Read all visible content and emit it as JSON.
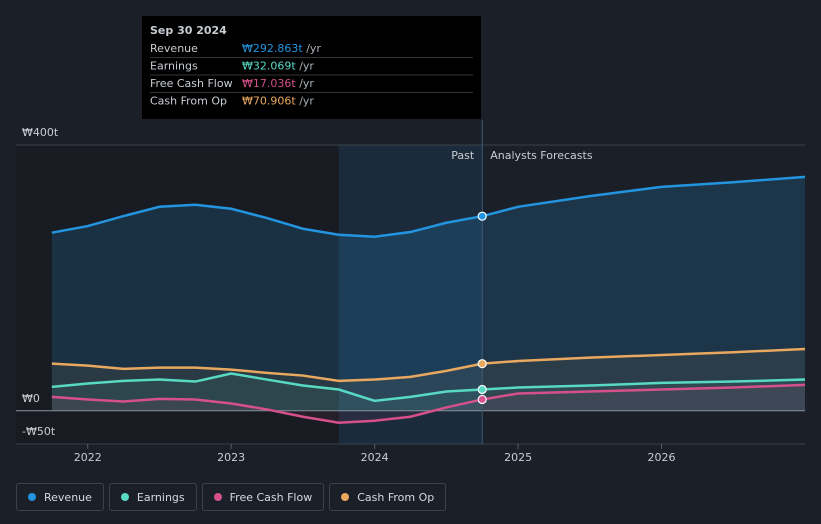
{
  "chart_data": {
    "type": "line",
    "x": [
      2021.75,
      2022,
      2022.25,
      2022.5,
      2022.75,
      2023,
      2023.25,
      2023.5,
      2023.75,
      2024,
      2024.25,
      2024.5,
      2024.75,
      2025,
      2025.5,
      2026,
      2026.5,
      2027
    ],
    "xlim": [
      2021.5,
      2027
    ],
    "xticks": [
      2022,
      2023,
      2024,
      2025,
      2026
    ],
    "ylim": [
      -50,
      400
    ],
    "yticks": [
      {
        "value": 400,
        "label": "₩400t"
      },
      {
        "value": 0,
        "label": "₩0"
      },
      {
        "value": -50,
        "label": "-₩50t"
      }
    ],
    "divider": 2024.75,
    "highlight_start": 2023.75,
    "annotations": {
      "past": "Past",
      "forecast": "Analysts Forecasts"
    },
    "tooltip": {
      "title": "Sep 30 2024",
      "suffix": "/yr",
      "index": 12
    },
    "series": [
      {
        "name": "Revenue",
        "color": "#2394df",
        "values": [
          268,
          278,
          293,
          307,
          310,
          304,
          290,
          274,
          265,
          262,
          269,
          283,
          292.863,
          307,
          323,
          337,
          344,
          352
        ],
        "value_labels": [
          null,
          null,
          null,
          null,
          null,
          null,
          null,
          null,
          null,
          null,
          null,
          null,
          "₩292.863t",
          null,
          null,
          null,
          null,
          null
        ]
      },
      {
        "name": "Earnings",
        "color": "#58d9c3",
        "values": [
          36,
          41,
          45,
          47,
          44,
          56,
          47,
          38,
          32,
          15,
          21,
          29,
          32.069,
          35,
          38,
          42,
          44,
          47
        ],
        "value_labels": [
          null,
          null,
          null,
          null,
          null,
          null,
          null,
          null,
          null,
          null,
          null,
          null,
          "₩32.069t",
          null,
          null,
          null,
          null,
          null
        ]
      },
      {
        "name": "Free Cash Flow",
        "color": "#d6508b",
        "values": [
          21,
          17,
          14,
          18,
          17,
          11,
          2,
          -9,
          -18,
          -15,
          -9,
          5,
          17.036,
          26,
          29,
          32,
          35,
          39
        ],
        "value_labels": [
          null,
          null,
          null,
          null,
          null,
          null,
          null,
          null,
          null,
          null,
          null,
          null,
          "₩17.036t",
          null,
          null,
          null,
          null,
          null
        ]
      },
      {
        "name": "Cash From Op",
        "color": "#e9a85f",
        "values": [
          71,
          68,
          63,
          65,
          65,
          62,
          57,
          53,
          45,
          47,
          51,
          60,
          70.906,
          75,
          80,
          84,
          88,
          93
        ],
        "value_labels": [
          null,
          null,
          null,
          null,
          null,
          null,
          null,
          null,
          null,
          null,
          null,
          null,
          "₩70.906t",
          null,
          null,
          null,
          null,
          null
        ]
      }
    ]
  }
}
